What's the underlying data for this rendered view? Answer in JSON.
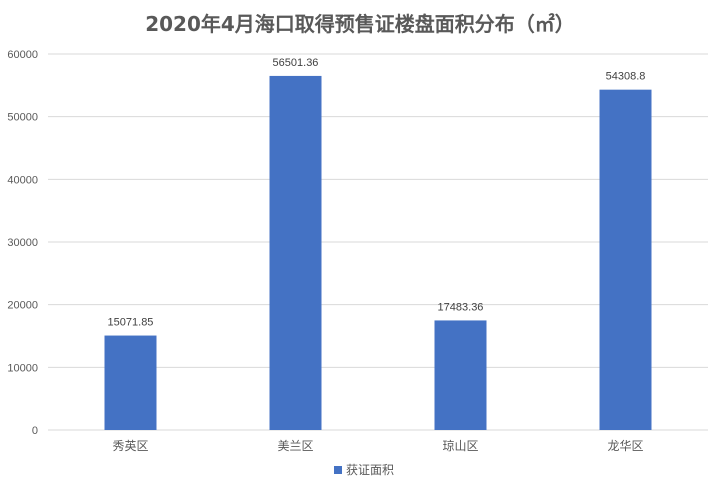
{
  "chart_data": {
    "type": "bar",
    "title": "2020年4月海口取得预售证楼盘面积分布（㎡）",
    "categories": [
      "秀英区",
      "美兰区",
      "琼山区",
      "龙华区"
    ],
    "series": [
      {
        "name": "获证面积",
        "values": [
          15071.85,
          56501.36,
          17483.36,
          54308.8
        ]
      }
    ],
    "data_labels": [
      "15071.85",
      "56501.36",
      "17483.36",
      "54308.8"
    ],
    "ylim": [
      0,
      60000
    ],
    "yticks": [
      0,
      10000,
      20000,
      30000,
      40000,
      50000,
      60000
    ],
    "grid": true,
    "legend_position": "bottom",
    "colors": {
      "bar": "#4472C4",
      "grid": "#D9D9D9"
    }
  }
}
